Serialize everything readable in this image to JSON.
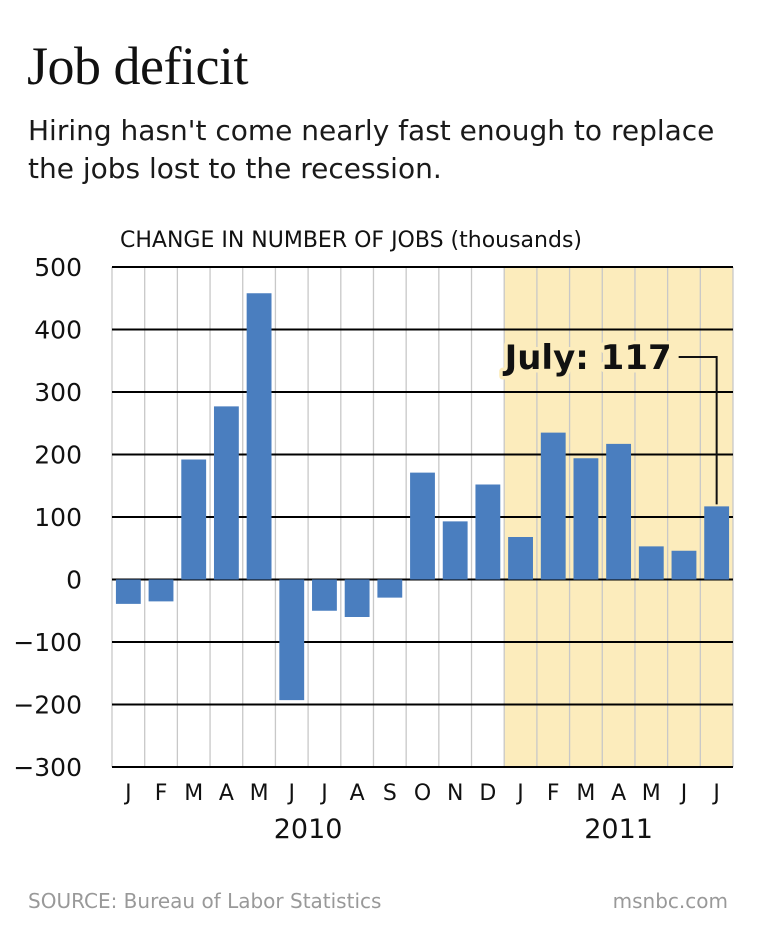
{
  "title": "Job deficit",
  "subtitle": "Hiring hasn't come nearly fast enough to replace the jobs lost to the recession.",
  "source": "SOURCE: Bureau of Labor Statistics",
  "brand": "msnbc.com",
  "colors": {
    "bar": "#4a7ebf",
    "highlight": "#fcecbc",
    "grid": "#000000",
    "vgrid": "#c8c8c8"
  },
  "chart_data": {
    "type": "bar",
    "ylabel": "CHANGE IN NUMBER OF JOBS (thousands)",
    "ylim": [
      -300,
      500
    ],
    "yticks": [
      500,
      400,
      300,
      200,
      100,
      0,
      -100,
      -200,
      -300
    ],
    "ytick_labels": [
      "500",
      "400",
      "300",
      "200",
      "100",
      "0",
      "−100",
      "−200",
      "−300"
    ],
    "categories": [
      "J",
      "F",
      "M",
      "A",
      "M",
      "J",
      "J",
      "A",
      "S",
      "O",
      "N",
      "D",
      "J",
      "F",
      "M",
      "A",
      "M",
      "J",
      "J"
    ],
    "values": [
      -39,
      -35,
      192,
      277,
      458,
      -193,
      -50,
      -60,
      -29,
      171,
      93,
      152,
      68,
      235,
      194,
      217,
      53,
      46,
      117
    ],
    "year_labels": [
      {
        "label": "2010",
        "from": 0,
        "to": 11
      },
      {
        "label": "2011",
        "from": 12,
        "to": 18
      }
    ],
    "highlight_range": [
      12,
      18
    ],
    "grid": true,
    "annotation": {
      "text": "July: 117",
      "index": 18
    }
  }
}
